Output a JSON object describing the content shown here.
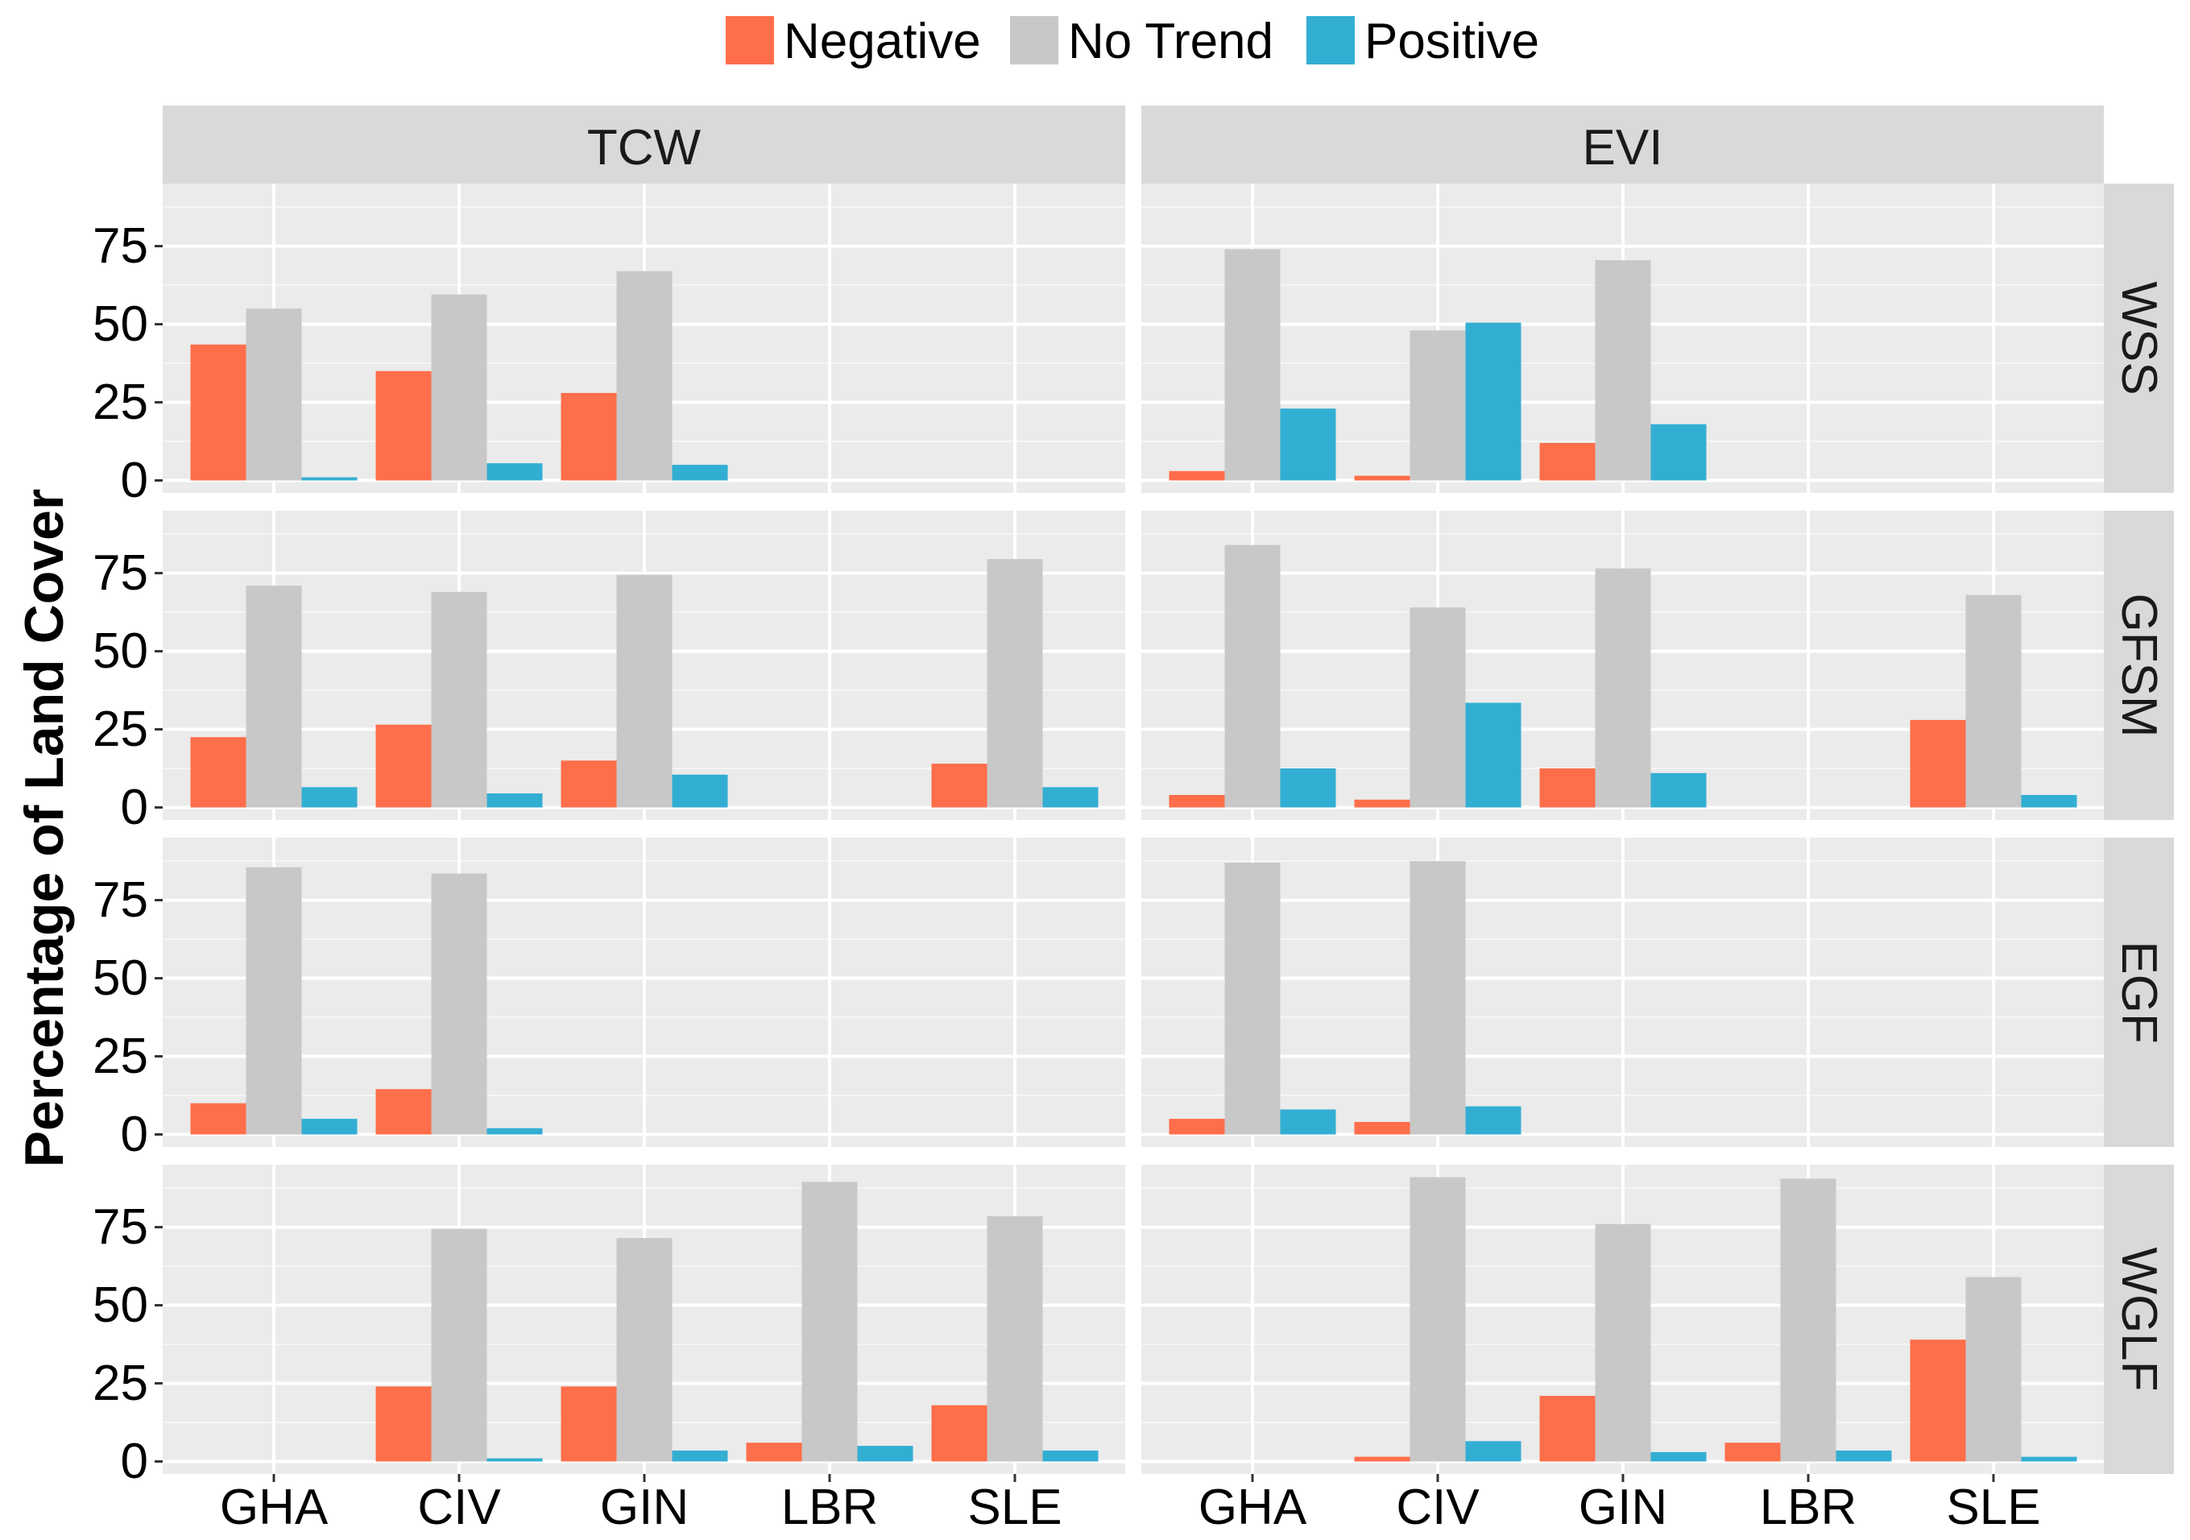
{
  "chart_data": {
    "type": "bar",
    "layout": "faceted-grid",
    "ylabel": "Percentage of Land Cover",
    "xlabel": "",
    "ylim": [
      -4,
      95
    ],
    "yticks": [
      0,
      25,
      50,
      75
    ],
    "ytick_labels": [
      "0",
      "25",
      "50",
      "75"
    ],
    "categories": [
      "GHA",
      "CIV",
      "GIN",
      "LBR",
      "SLE"
    ],
    "legend": {
      "position": "top",
      "entries": [
        {
          "name": "Negative",
          "color": "#FF6E4A"
        },
        {
          "name": "No Trend",
          "color": "#C8C8C8"
        },
        {
          "name": "Positive",
          "color": "#33AED3"
        }
      ]
    },
    "col_facets": [
      "TCW",
      "EVI"
    ],
    "row_facets": [
      "WSS",
      "GFSM",
      "EGF",
      "WGLF"
    ],
    "panels": [
      {
        "col": "TCW",
        "row": "WSS",
        "series": [
          {
            "name": "Negative",
            "values": [
              43.5,
              35,
              28,
              null,
              null
            ]
          },
          {
            "name": "No Trend",
            "values": [
              55,
              59.5,
              67,
              null,
              null
            ]
          },
          {
            "name": "Positive",
            "values": [
              1,
              5.5,
              5,
              null,
              null
            ]
          }
        ]
      },
      {
        "col": "EVI",
        "row": "WSS",
        "series": [
          {
            "name": "Negative",
            "values": [
              3,
              1.5,
              12,
              null,
              null
            ]
          },
          {
            "name": "No Trend",
            "values": [
              74,
              48,
              70.5,
              null,
              null
            ]
          },
          {
            "name": "Positive",
            "values": [
              23,
              50.5,
              18,
              null,
              null
            ]
          }
        ]
      },
      {
        "col": "TCW",
        "row": "GFSM",
        "series": [
          {
            "name": "Negative",
            "values": [
              22.5,
              26.5,
              15,
              null,
              14
            ]
          },
          {
            "name": "No Trend",
            "values": [
              71,
              69,
              74.5,
              null,
              79.5
            ]
          },
          {
            "name": "Positive",
            "values": [
              6.5,
              4.5,
              10.5,
              null,
              6.5
            ]
          }
        ]
      },
      {
        "col": "EVI",
        "row": "GFSM",
        "series": [
          {
            "name": "Negative",
            "values": [
              4,
              2.5,
              12.5,
              null,
              28
            ]
          },
          {
            "name": "No Trend",
            "values": [
              84,
              64,
              76.5,
              null,
              68
            ]
          },
          {
            "name": "Positive",
            "values": [
              12.5,
              33.5,
              11,
              null,
              4
            ]
          }
        ]
      },
      {
        "col": "TCW",
        "row": "EGF",
        "series": [
          {
            "name": "Negative",
            "values": [
              10,
              14.5,
              null,
              null,
              null
            ]
          },
          {
            "name": "No Trend",
            "values": [
              85.5,
              83.5,
              null,
              null,
              null
            ]
          },
          {
            "name": "Positive",
            "values": [
              5,
              2,
              null,
              null,
              null
            ]
          }
        ]
      },
      {
        "col": "EVI",
        "row": "EGF",
        "series": [
          {
            "name": "Negative",
            "values": [
              5,
              4,
              null,
              null,
              null
            ]
          },
          {
            "name": "No Trend",
            "values": [
              87,
              87.5,
              null,
              null,
              null
            ]
          },
          {
            "name": "Positive",
            "values": [
              8,
              9,
              null,
              null,
              null
            ]
          }
        ]
      },
      {
        "col": "TCW",
        "row": "WGLF",
        "series": [
          {
            "name": "Negative",
            "values": [
              null,
              24,
              24,
              6,
              18
            ]
          },
          {
            "name": "No Trend",
            "values": [
              null,
              74.5,
              71.5,
              89.5,
              78.5
            ]
          },
          {
            "name": "Positive",
            "values": [
              null,
              1,
              3.5,
              5,
              3.5
            ]
          }
        ]
      },
      {
        "col": "EVI",
        "row": "WGLF",
        "series": [
          {
            "name": "Negative",
            "values": [
              null,
              1.5,
              21,
              6,
              39
            ]
          },
          {
            "name": "No Trend",
            "values": [
              null,
              91,
              76,
              90.5,
              59
            ]
          },
          {
            "name": "Positive",
            "values": [
              null,
              6.5,
              3,
              3.5,
              1.5
            ]
          }
        ]
      }
    ]
  }
}
